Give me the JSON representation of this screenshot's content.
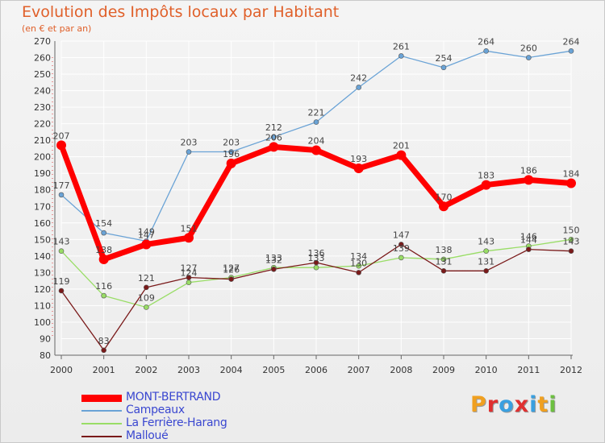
{
  "chart": {
    "title": "Evolution des Impôts locaux par Habitant",
    "subtitle": "(en € et par an)"
  },
  "logo": {
    "text": "Proxiti",
    "letter_colors": [
      "#f0a020",
      "#e03030",
      "#3aa0e0",
      "#e03030",
      "#3aa0e0",
      "#f0a020",
      "#6cc040"
    ]
  },
  "chart_data": {
    "type": "line",
    "title": "Evolution des Impôts locaux par Habitant",
    "subtitle": "(en € et par an)",
    "x": [
      "2000",
      "2001",
      "2002",
      "2003",
      "2004",
      "2005",
      "2006",
      "2007",
      "2008",
      "2009",
      "2010",
      "2011",
      "2012"
    ],
    "ylim": [
      80,
      270
    ],
    "yticks": [
      80,
      90,
      100,
      110,
      120,
      130,
      140,
      150,
      160,
      170,
      180,
      190,
      200,
      210,
      220,
      230,
      240,
      250,
      260,
      270
    ],
    "grid": "horizontal",
    "legend_position": "bottom-left",
    "series": [
      {
        "name": "MONT-BERTRAND",
        "color": "#ff0000",
        "emphasis": true,
        "values": [
          207,
          138,
          147,
          151,
          196,
          206,
          204,
          193,
          201,
          170,
          183,
          186,
          184
        ]
      },
      {
        "name": "Campeaux",
        "color": "#6aa3d6",
        "emphasis": false,
        "values": [
          177,
          154,
          149,
          203,
          203,
          212,
          221,
          242,
          261,
          254,
          264,
          260,
          264
        ]
      },
      {
        "name": "La Ferrière-Harang",
        "color": "#99dd66",
        "emphasis": false,
        "values": [
          143,
          116,
          109,
          124,
          127,
          133,
          133,
          134,
          139,
          138,
          143,
          146,
          150
        ]
      },
      {
        "name": "Malloué",
        "color": "#7a1a1a",
        "emphasis": false,
        "values": [
          119,
          83,
          121,
          127,
          126,
          132,
          136,
          130,
          147,
          131,
          131,
          144,
          143
        ]
      }
    ]
  }
}
